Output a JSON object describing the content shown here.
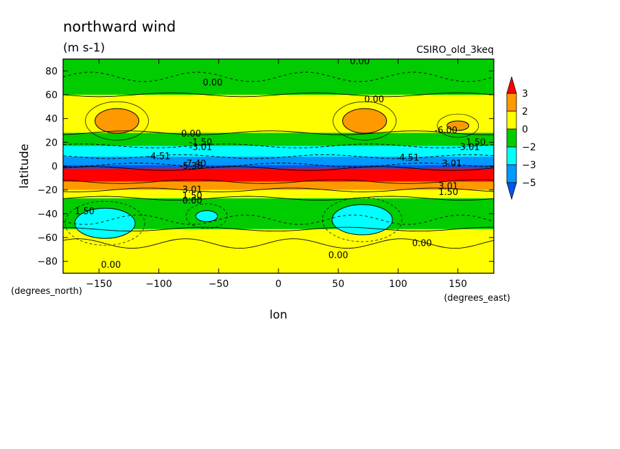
{
  "title": "northward wind",
  "units": "(m s-1)",
  "model": "CSIRO_old_3keq",
  "xaxis": {
    "label": "lon",
    "units": "(degrees_east)",
    "ticks": [
      -150,
      -100,
      -50,
      0,
      50,
      100,
      150
    ],
    "range": [
      -180,
      180
    ]
  },
  "yaxis": {
    "label": "latitude",
    "units": "(degrees_north)",
    "ticks": [
      -80,
      -60,
      -40,
      -20,
      0,
      20,
      40,
      60,
      80
    ],
    "range": [
      -90,
      90
    ]
  },
  "colors": {
    "red": "#ff0000",
    "orange": "#ff9900",
    "yellow": "#ffff00",
    "green": "#00cc00",
    "cyan": "#00ffff",
    "blue": "#0099ff",
    "darkblue": "#0055ee"
  },
  "colorbar": {
    "levels": [
      3,
      2,
      0,
      -2,
      -3,
      -5
    ],
    "segments": [
      "#ff9900",
      "#ffff00",
      "#00cc00",
      "#00ffff",
      "#0099ff"
    ],
    "top_arrow": "#ff0000",
    "bottom_arrow": "#0055ee"
  },
  "chart_data": {
    "type": "heatmap",
    "variable": "northward wind",
    "xlabel": "lon",
    "ylabel": "latitude",
    "xlim": [
      -180,
      180
    ],
    "ylim": [
      -90,
      90
    ],
    "zonal_bands": [
      {
        "lat": [
          60,
          90
        ],
        "value_range": [
          -2,
          0
        ],
        "color": "green"
      },
      {
        "lat": [
          28,
          60
        ],
        "value_range": [
          0,
          2
        ],
        "color": "yellow"
      },
      {
        "lat": [
          17,
          28
        ],
        "value_range": [
          -2,
          0
        ],
        "color": "green"
      },
      {
        "lat": [
          8,
          17
        ],
        "value_range": [
          -3,
          -2
        ],
        "color": "cyan"
      },
      {
        "lat": [
          1,
          8
        ],
        "value_range": [
          -5,
          -3
        ],
        "color": "blue"
      },
      {
        "lat": [
          -2,
          1
        ],
        "value_range": [
          -5,
          -5
        ],
        "color": "darkblue"
      },
      {
        "lat": [
          -13,
          -2
        ],
        "value_range": [
          3,
          5
        ],
        "color": "red"
      },
      {
        "lat": [
          -20,
          -13
        ],
        "value_range": [
          2,
          3
        ],
        "color": "orange"
      },
      {
        "lat": [
          -27,
          -20
        ],
        "value_range": [
          0,
          2
        ],
        "color": "yellow"
      },
      {
        "lat": [
          -53,
          -27
        ],
        "value_range": [
          -2,
          0
        ],
        "color": "green"
      },
      {
        "lat": [
          -90,
          -53
        ],
        "value_range": [
          0,
          2
        ],
        "color": "yellow"
      }
    ],
    "features": [
      {
        "type": "high",
        "lon": -135,
        "lat": 38,
        "value_range": [
          2,
          3
        ],
        "color": "orange"
      },
      {
        "type": "high",
        "lon": 72,
        "lat": 38,
        "value_range": [
          2,
          3
        ],
        "color": "orange"
      },
      {
        "type": "high",
        "lon": 150,
        "lat": 34,
        "value_range": [
          2,
          3
        ],
        "color": "orange"
      },
      {
        "type": "low",
        "lon": -145,
        "lat": -48,
        "value_range": [
          -3,
          -2
        ],
        "color": "cyan"
      },
      {
        "type": "low",
        "lon": 70,
        "lat": -45,
        "value_range": [
          -3,
          -2
        ],
        "color": "cyan"
      },
      {
        "type": "low",
        "lon": -60,
        "lat": -42,
        "value_range": [
          -3,
          -2
        ],
        "color": "cyan"
      }
    ],
    "contour_labels": [
      {
        "text": "0.00",
        "lon": -55,
        "lat": 70
      },
      {
        "text": "0.00",
        "lon": 68,
        "lat": 88
      },
      {
        "text": "0.00",
        "lon": 80,
        "lat": 56
      },
      {
        "text": "0.00",
        "lon": -73,
        "lat": 27
      },
      {
        "text": "-1.50",
        "lon": -65,
        "lat": 20
      },
      {
        "text": "-3.01",
        "lon": -65,
        "lat": 16
      },
      {
        "text": "-4.51",
        "lon": -100,
        "lat": 8
      },
      {
        "text": "-7.40",
        "lon": -70,
        "lat": 2
      },
      {
        "text": "-5.38",
        "lon": -73,
        "lat": 0
      },
      {
        "text": "-4.51",
        "lon": 108,
        "lat": 7
      },
      {
        "text": "-6.00",
        "lon": 140,
        "lat": 30
      },
      {
        "text": "1.50",
        "lon": 165,
        "lat": 20
      },
      {
        "text": "3.01",
        "lon": 160,
        "lat": 16
      },
      {
        "text": "3.01",
        "lon": 145,
        "lat": 2
      },
      {
        "text": "3.01",
        "lon": -72,
        "lat": -20
      },
      {
        "text": "1.50",
        "lon": -72,
        "lat": -25
      },
      {
        "text": "0.00",
        "lon": -72,
        "lat": -29
      },
      {
        "text": "3.01",
        "lon": 142,
        "lat": -17
      },
      {
        "text": "1.50",
        "lon": 142,
        "lat": -22
      },
      {
        "text": "1.50",
        "lon": -162,
        "lat": -38
      },
      {
        "text": "0.00",
        "lon": -140,
        "lat": -83
      },
      {
        "text": "0.00",
        "lon": 50,
        "lat": -75
      },
      {
        "text": "0.00",
        "lon": 120,
        "lat": -65
      }
    ]
  }
}
